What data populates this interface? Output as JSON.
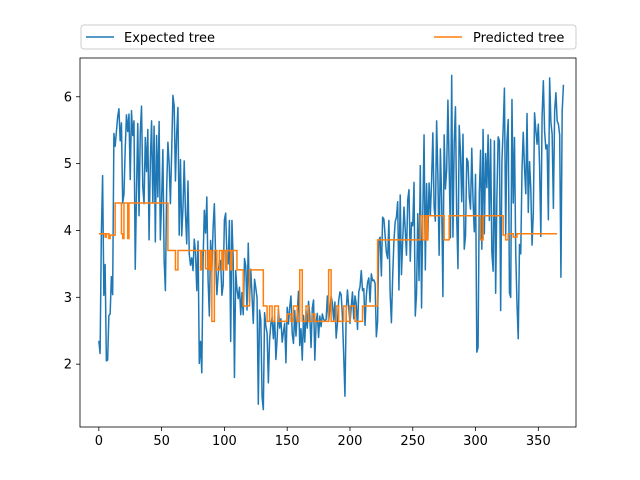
{
  "chart_data": {
    "type": "line",
    "xlim": [
      -15,
      380
    ],
    "ylim": [
      1.06,
      6.58
    ],
    "x_ticks": [
      0,
      50,
      100,
      150,
      200,
      250,
      300,
      350
    ],
    "y_ticks": [
      2,
      3,
      4,
      5,
      6
    ],
    "grid": false,
    "legend_placement": "top, above plot",
    "series": [
      {
        "name": "Expected tree",
        "color": "#1f77b4",
        "x_start": 0,
        "x_step": 1,
        "values": [
          2.35,
          2.16,
          3.95,
          4.82,
          3.03,
          3.49,
          2.05,
          2.06,
          2.73,
          2.75,
          3.31,
          3.04,
          5.45,
          5.26,
          5.48,
          5.7,
          5.82,
          5.34,
          5.61,
          4.41,
          4.54,
          5.22,
          5.73,
          5.48,
          5.74,
          4.76,
          5.79,
          5.42,
          5.64,
          3.42,
          4.59,
          5.6,
          4.22,
          5.46,
          5.86,
          4.65,
          4.4,
          5.39,
          4.88,
          5.51,
          3.86,
          5.02,
          5.64,
          4.41,
          5.56,
          3.83,
          5.42,
          4.5,
          5.63,
          3.86,
          4.47,
          5.21,
          3.56,
          3.1,
          4.6,
          5.32,
          5.0,
          4.4,
          5.18,
          6.02,
          5.86,
          4.74,
          5.45,
          5.84,
          3.93,
          5.06,
          3.92,
          4.34,
          5.04,
          4.25,
          3.8,
          4.74,
          3.65,
          3.48,
          3.59,
          3.4,
          3.87,
          3.67,
          3.1,
          3.84,
          2.01,
          2.34,
          1.87,
          3.54,
          4.3,
          3.96,
          4.5,
          3.26,
          2.72,
          3.85,
          3.39,
          4.04,
          4.4,
          3.61,
          3.04,
          3.33,
          3.55,
          3.55,
          3.03,
          3.18,
          4.16,
          4.26,
          3.6,
          3.5,
          4.15,
          2.34,
          4.15,
          3.57,
          1.8,
          3.4,
          3.12,
          2.98,
          3.15,
          2.74,
          3.07,
          2.74,
          3.58,
          3.47,
          2.81,
          3.81,
          2.93,
          3.42,
          3.02,
          2.61,
          3.27,
          3.14,
          2.99,
          1.4,
          2.81,
          2.66,
          1.51,
          1.32,
          2.77,
          2.57,
          2.46,
          1.72,
          2.37,
          2.6,
          2.7,
          2.38,
          2.72,
          2.07,
          2.38,
          2.82,
          2.54,
          2.68,
          2.33,
          2.48,
          2.61,
          2.02,
          2.85,
          2.6,
          2.85,
          3.02,
          2.46,
          2.31,
          2.8,
          2.42,
          2.76,
          3.09,
          2.28,
          2.53,
          2.06,
          2.73,
          2.33,
          2.8,
          2.54,
          2.94,
          2.73,
          2.25,
          2.84,
          2.96,
          2.06,
          2.62,
          2.76,
          2.4,
          2.72,
          2.56,
          2.75,
          2.67,
          2.65,
          2.67,
          3.02,
          2.64,
          2.82,
          3.02,
          2.91,
          2.66,
          2.93,
          2.39,
          2.61,
          2.95,
          3.08,
          3.04,
          2.71,
          2.13,
          1.52,
          2.8,
          3.11,
          2.85,
          2.61,
          2.85,
          3.08,
          2.68,
          3.02,
          2.9,
          2.52,
          3.08,
          3.16,
          3.4,
          3.1,
          3.13,
          2.58,
          3.02,
          3.22,
          3.29,
          2.93,
          3.35,
          3.25,
          3.26,
          3.21,
          2.41,
          2.64,
          3.85,
          3.9,
          3.32,
          4.2,
          4.17,
          3.92,
          3.67,
          3.58,
          4.15,
          3.05,
          2.62,
          3.31,
          3.84,
          4.13,
          4.2,
          4.43,
          3.11,
          4.53,
          3.34,
          3.85,
          4.35,
          4.01,
          3.63,
          4.46,
          4.61,
          3.54,
          4.12,
          4.07,
          4.72,
          2.72,
          3.05,
          4.25,
          3.25,
          4.97,
          2.84,
          4.25,
          5.43,
          3.41,
          4.7,
          3.86,
          4.71,
          4.22,
          4.74,
          5.46,
          4.35,
          4.14,
          5.64,
          4.83,
          3.63,
          5.22,
          4.48,
          3.01,
          5.43,
          4.62,
          4.9,
          5.95,
          4.94,
          3.89,
          6.32,
          3.9,
          5.31,
          5.85,
          4.21,
          3.43,
          5.57,
          5.17,
          4.43,
          5.44,
          3.72,
          3.91,
          5.08,
          5.03,
          4.5,
          4.32,
          5.23,
          4.45,
          3.98,
          4.84,
          2.18,
          2.25,
          4.56,
          5.2,
          3.72,
          5.51,
          3.95,
          5.15,
          4.64,
          5.43,
          4.15,
          5.36,
          3.67,
          3.39,
          5.34,
          3.06,
          4.49,
          5.4,
          5.34,
          2.8,
          5.03,
          5.52,
          6.13,
          3.94,
          5.33,
          5.66,
          3.07,
          3.0,
          5.96,
          4.41,
          5.39,
          3.67,
          2.91,
          2.38,
          3.79,
          3.65,
          4.91,
          5.47,
          4.93,
          4.55,
          5.75,
          4.27,
          5.03,
          4.63,
          3.78,
          4.26,
          5.76,
          5.5,
          5.29,
          5.59,
          4.96,
          3.91,
          5.71,
          6.24,
          5.48,
          5.22,
          5.28,
          4.16,
          6.28,
          5.62,
          5.44,
          4.33,
          5.79,
          6.06,
          5.64,
          5.59,
          5.43,
          3.3,
          5.79,
          6.18
        ]
      },
      {
        "name": "Predicted tree",
        "color": "#ff7f0e",
        "steps": [
          [
            0,
            3.95
          ],
          [
            5,
            3.9
          ],
          [
            6,
            3.95
          ],
          [
            8,
            3.88
          ],
          [
            9,
            3.93
          ],
          [
            13,
            4.41
          ],
          [
            18,
            3.95
          ],
          [
            19,
            3.88
          ],
          [
            20,
            4.41
          ],
          [
            22,
            4.41
          ],
          [
            23,
            3.88
          ],
          [
            24,
            4.41
          ],
          [
            55,
            3.7
          ],
          [
            61,
            3.41
          ],
          [
            63,
            3.7
          ],
          [
            81,
            3.41
          ],
          [
            82,
            3.7
          ],
          [
            85,
            3.43
          ],
          [
            87,
            3.7
          ],
          [
            88,
            3.41
          ],
          [
            89,
            3.7
          ],
          [
            90,
            2.64
          ],
          [
            92,
            3.7
          ],
          [
            94,
            3.41
          ],
          [
            96,
            3.7
          ],
          [
            98,
            3.41
          ],
          [
            99,
            3.7
          ],
          [
            101,
            3.41
          ],
          [
            102,
            3.7
          ],
          [
            105,
            3.41
          ],
          [
            106,
            3.7
          ],
          [
            110,
            3.41
          ],
          [
            113,
            3.41
          ],
          [
            115,
            2.87
          ],
          [
            120,
            3.41
          ],
          [
            126,
            3.41
          ],
          [
            131,
            2.87
          ],
          [
            134,
            2.64
          ],
          [
            136,
            2.87
          ],
          [
            138,
            2.64
          ],
          [
            140,
            2.87
          ],
          [
            143,
            2.64
          ],
          [
            150,
            2.75
          ],
          [
            153,
            2.64
          ],
          [
            155,
            2.87
          ],
          [
            158,
            2.64
          ],
          [
            160,
            3.41
          ],
          [
            162,
            2.64
          ],
          [
            165,
            2.87
          ],
          [
            167,
            2.64
          ],
          [
            170,
            2.75
          ],
          [
            172,
            2.64
          ],
          [
            177,
            2.64
          ],
          [
            183,
            3.41
          ],
          [
            185,
            2.64
          ],
          [
            189,
            2.87
          ],
          [
            191,
            2.64
          ],
          [
            195,
            2.87
          ],
          [
            197,
            2.64
          ],
          [
            200,
            2.87
          ],
          [
            204,
            2.64
          ],
          [
            210,
            2.87
          ],
          [
            222,
            3.86
          ],
          [
            256,
            4.22
          ],
          [
            258,
            3.86
          ],
          [
            260,
            4.22
          ],
          [
            261,
            3.86
          ],
          [
            262,
            4.22
          ],
          [
            275,
            3.86
          ],
          [
            279,
            4.22
          ],
          [
            295,
            4.22
          ],
          [
            301,
            4.22
          ],
          [
            304,
            3.86
          ],
          [
            306,
            4.22
          ],
          [
            322,
            3.93
          ],
          [
            324,
            3.86
          ],
          [
            326,
            3.95
          ],
          [
            328,
            3.95
          ],
          [
            330,
            3.9
          ],
          [
            333,
            3.95
          ],
          [
            365,
            3.95
          ]
        ]
      }
    ]
  }
}
